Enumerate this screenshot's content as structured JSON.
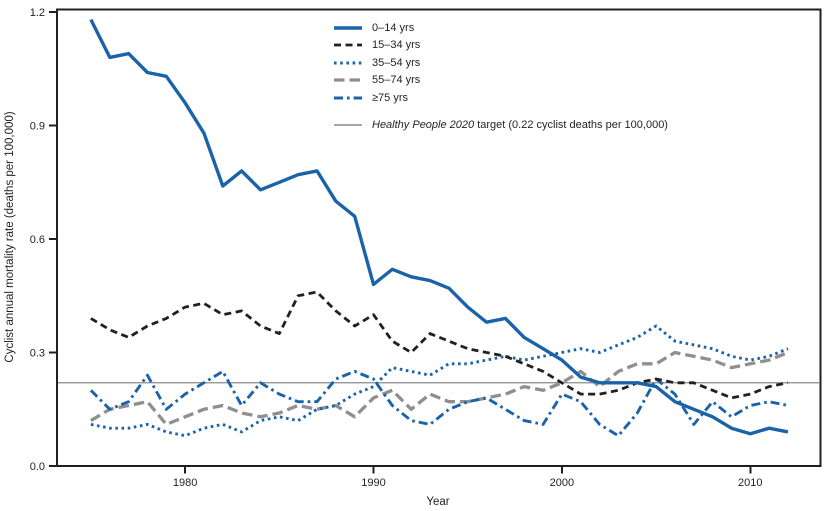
{
  "chart_data": {
    "type": "line",
    "title": "",
    "xlabel": "Year",
    "ylabel": "Cyclist annual mortality rate (deaths per 100,000)",
    "xlim": [
      1973.2,
      2013.7
    ],
    "ylim": [
      0,
      1.2
    ],
    "x_ticks": [
      1980,
      1990,
      2000,
      2010
    ],
    "y_ticks": [
      "0.0",
      "0.3",
      "0.6",
      "0.9",
      "1.2"
    ],
    "grid": false,
    "legend_position": "top-center-inside",
    "x": [
      1975,
      1976,
      1977,
      1978,
      1979,
      1980,
      1981,
      1982,
      1983,
      1984,
      1985,
      1986,
      1987,
      1988,
      1989,
      1990,
      1991,
      1992,
      1993,
      1994,
      1995,
      1996,
      1997,
      1998,
      1999,
      2000,
      2001,
      2002,
      2003,
      2004,
      2005,
      2006,
      2007,
      2008,
      2009,
      2010,
      2011,
      2012
    ],
    "series": [
      {
        "name": "0–14 yrs",
        "color": "#1b63a8",
        "style": "solid",
        "values": [
          1.18,
          1.08,
          1.09,
          1.04,
          1.03,
          0.96,
          0.88,
          0.74,
          0.78,
          0.73,
          0.75,
          0.77,
          0.78,
          0.7,
          0.66,
          0.48,
          0.52,
          0.5,
          0.49,
          0.47,
          0.42,
          0.38,
          0.39,
          0.34,
          0.31,
          0.28,
          0.235,
          0.22,
          0.22,
          0.22,
          0.21,
          0.17,
          0.15,
          0.13,
          0.1,
          0.085,
          0.1,
          0.09
        ]
      },
      {
        "name": "15–34 yrs",
        "color": "#232020",
        "style": "dash",
        "values": [
          0.39,
          0.36,
          0.34,
          0.37,
          0.39,
          0.42,
          0.43,
          0.4,
          0.41,
          0.37,
          0.35,
          0.45,
          0.46,
          0.41,
          0.37,
          0.4,
          0.33,
          0.3,
          0.35,
          0.33,
          0.31,
          0.3,
          0.29,
          0.27,
          0.25,
          0.22,
          0.19,
          0.19,
          0.2,
          0.22,
          0.23,
          0.22,
          0.22,
          0.2,
          0.18,
          0.19,
          0.21,
          0.22
        ]
      },
      {
        "name": "35–54 yrs",
        "color": "#1b63a8",
        "style": "dot",
        "values": [
          0.11,
          0.1,
          0.1,
          0.11,
          0.09,
          0.08,
          0.1,
          0.11,
          0.09,
          0.12,
          0.13,
          0.12,
          0.15,
          0.16,
          0.19,
          0.21,
          0.26,
          0.25,
          0.24,
          0.27,
          0.27,
          0.28,
          0.29,
          0.28,
          0.29,
          0.3,
          0.31,
          0.3,
          0.32,
          0.34,
          0.37,
          0.33,
          0.32,
          0.31,
          0.29,
          0.28,
          0.29,
          0.31
        ]
      },
      {
        "name": "55–74 yrs",
        "color": "#8f8f8f",
        "style": "longdash",
        "values": [
          0.12,
          0.15,
          0.16,
          0.17,
          0.11,
          0.13,
          0.15,
          0.16,
          0.14,
          0.13,
          0.14,
          0.16,
          0.15,
          0.16,
          0.13,
          0.18,
          0.2,
          0.15,
          0.19,
          0.17,
          0.17,
          0.18,
          0.19,
          0.21,
          0.2,
          0.22,
          0.25,
          0.21,
          0.25,
          0.27,
          0.27,
          0.3,
          0.29,
          0.28,
          0.26,
          0.27,
          0.28,
          0.3
        ]
      },
      {
        "name": "≥75 yrs",
        "color": "#1b63a8",
        "style": "dashdot",
        "values": [
          0.2,
          0.15,
          0.17,
          0.24,
          0.15,
          0.19,
          0.22,
          0.25,
          0.16,
          0.22,
          0.19,
          0.17,
          0.17,
          0.23,
          0.25,
          0.23,
          0.16,
          0.12,
          0.11,
          0.15,
          0.17,
          0.18,
          0.15,
          0.12,
          0.11,
          0.19,
          0.17,
          0.11,
          0.08,
          0.14,
          0.23,
          0.19,
          0.11,
          0.17,
          0.13,
          0.16,
          0.17,
          0.16
        ]
      }
    ],
    "reference_line": {
      "value": 0.22,
      "color": "#8a8a8a",
      "label_italic": "Healthy People 2020",
      "label_rest": " target (0.22 cyclist deaths per 100,000)"
    }
  }
}
